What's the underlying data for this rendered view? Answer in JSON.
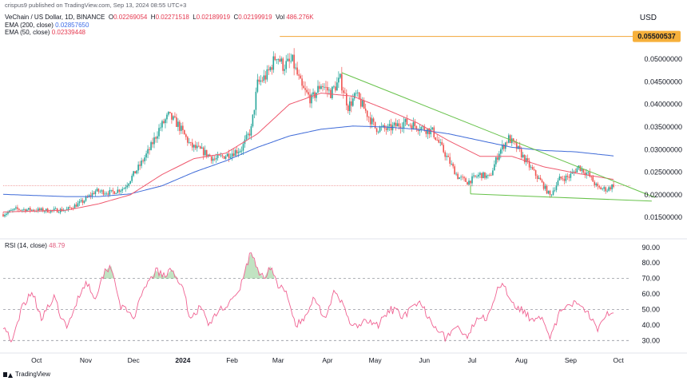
{
  "header": {
    "published": "crispus9 published on TradingView.com, Sep 13, 2024 08:55 UTC+3",
    "symbol": "VeChain / US Dollar, 1D, BINANCE",
    "o_label": "O",
    "o_value": "0.02269054",
    "h_label": "H",
    "h_value": "0.02271518",
    "l_label": "L",
    "l_value": "0.02189919",
    "c_label": "C",
    "c_value": "0.02199919",
    "vol_label": "Vol",
    "vol_value": "486.276K",
    "ema200_label": "EMA (200, close)",
    "ema200_value": "0.02857650",
    "ema50_label": "EMA (50, close)",
    "ema50_value": "0.02339448"
  },
  "currency": "USD",
  "rsi_label": "RSI (14, close)",
  "rsi_value": "48.79",
  "brand": "TradingView",
  "colors": {
    "up": "#26a69a",
    "down": "#ef5350",
    "ema200": "#3f6bd8",
    "ema50": "#ef5a6f",
    "trend": "#67c24a",
    "rsi": "#f06292",
    "hline": "#f3a536",
    "current": "#ef9a9a"
  },
  "chart_data": [
    {
      "type": "candlestick",
      "title": "VeChain / US Dollar, 1D, BINANCE",
      "y_axis_ticks": [
        "0.05000000",
        "0.04500000",
        "0.04000000",
        "0.03500000",
        "0.03000000",
        "0.02500000",
        "0.02000000",
        "0.01500000"
      ],
      "y_tick_values": [
        0.05,
        0.045,
        0.04,
        0.035,
        0.03,
        0.025,
        0.02,
        0.015
      ],
      "ylim": [
        0.0115,
        0.0553
      ],
      "x_axis_ticks": [
        "Oct",
        "Nov",
        "Dec",
        "2024",
        "Feb",
        "Mar",
        "Apr",
        "May",
        "Jun",
        "Jul",
        "Aug",
        "Sep",
        "Oct"
      ],
      "x_tick_days": [
        21,
        52,
        82,
        113,
        144,
        173,
        204,
        234,
        265,
        295,
        326,
        357,
        387
      ],
      "highlight_label": "0.05500537",
      "highlight_value": 0.05500537,
      "price_waypoints": [
        [
          0,
          0.0157
        ],
        [
          8,
          0.0168
        ],
        [
          30,
          0.0165
        ],
        [
          40,
          0.0167
        ],
        [
          50,
          0.0185
        ],
        [
          58,
          0.0208
        ],
        [
          68,
          0.0205
        ],
        [
          76,
          0.0215
        ],
        [
          86,
          0.0265
        ],
        [
          92,
          0.03
        ],
        [
          98,
          0.0345
        ],
        [
          104,
          0.0375
        ],
        [
          110,
          0.0355
        ],
        [
          118,
          0.0308
        ],
        [
          126,
          0.0295
        ],
        [
          133,
          0.0278
        ],
        [
          142,
          0.029
        ],
        [
          150,
          0.0302
        ],
        [
          156,
          0.0345
        ],
        [
          160,
          0.0445
        ],
        [
          166,
          0.0465
        ],
        [
          172,
          0.051
        ],
        [
          176,
          0.0485
        ],
        [
          182,
          0.0495
        ],
        [
          188,
          0.0435
        ],
        [
          194,
          0.041
        ],
        [
          200,
          0.0445
        ],
        [
          206,
          0.0425
        ],
        [
          212,
          0.0455
        ],
        [
          217,
          0.0395
        ],
        [
          222,
          0.042
        ],
        [
          228,
          0.0385
        ],
        [
          234,
          0.0348
        ],
        [
          242,
          0.0345
        ],
        [
          252,
          0.036
        ],
        [
          260,
          0.0352
        ],
        [
          270,
          0.034
        ],
        [
          278,
          0.029
        ],
        [
          286,
          0.024
        ],
        [
          292,
          0.0228
        ],
        [
          300,
          0.0245
        ],
        [
          306,
          0.0238
        ],
        [
          312,
          0.0295
        ],
        [
          318,
          0.0325
        ],
        [
          324,
          0.03
        ],
        [
          332,
          0.0258
        ],
        [
          338,
          0.023
        ],
        [
          344,
          0.0198
        ],
        [
          350,
          0.0235
        ],
        [
          356,
          0.024
        ],
        [
          362,
          0.0262
        ],
        [
          368,
          0.0245
        ],
        [
          374,
          0.0215
        ],
        [
          380,
          0.0212
        ],
        [
          384,
          0.0222
        ]
      ],
      "ema200_waypoints": [
        [
          0,
          0.0201
        ],
        [
          40,
          0.0196
        ],
        [
          60,
          0.0196
        ],
        [
          80,
          0.0202
        ],
        [
          100,
          0.022
        ],
        [
          120,
          0.025
        ],
        [
          140,
          0.0275
        ],
        [
          160,
          0.0305
        ],
        [
          180,
          0.033
        ],
        [
          200,
          0.0345
        ],
        [
          220,
          0.0352
        ],
        [
          240,
          0.035
        ],
        [
          260,
          0.0345
        ],
        [
          280,
          0.0335
        ],
        [
          300,
          0.032
        ],
        [
          320,
          0.0305
        ],
        [
          340,
          0.0298
        ],
        [
          360,
          0.0295
        ],
        [
          384,
          0.0286
        ]
      ],
      "ema50_waypoints": [
        [
          0,
          0.0162
        ],
        [
          40,
          0.0166
        ],
        [
          60,
          0.018
        ],
        [
          80,
          0.02
        ],
        [
          100,
          0.0245
        ],
        [
          120,
          0.028
        ],
        [
          140,
          0.0292
        ],
        [
          160,
          0.0335
        ],
        [
          180,
          0.04
        ],
        [
          200,
          0.0425
        ],
        [
          220,
          0.0418
        ],
        [
          240,
          0.039
        ],
        [
          260,
          0.036
        ],
        [
          280,
          0.032
        ],
        [
          300,
          0.0285
        ],
        [
          320,
          0.0285
        ],
        [
          340,
          0.0262
        ],
        [
          360,
          0.0248
        ],
        [
          384,
          0.0234
        ]
      ],
      "trendline_upper": [
        [
          213,
          0.047
        ],
        [
          410,
          0.0194
        ]
      ],
      "trendline_lower": [
        [
          294,
          0.0202
        ],
        [
          408,
          0.0186
        ]
      ],
      "current_price": 0.022
    },
    {
      "type": "line",
      "title": "RSI (14, close)",
      "y_axis_ticks": [
        "90.00",
        "80.00",
        "70.00",
        "60.00",
        "50.00",
        "40.00",
        "30.00"
      ],
      "y_tick_values": [
        90,
        80,
        70,
        60,
        50,
        40,
        30
      ],
      "ylim": [
        25,
        93
      ],
      "bands": [
        70,
        50,
        30
      ],
      "x_axis_ticks": [
        "Oct",
        "Nov",
        "Dec",
        "2024",
        "Feb",
        "Mar",
        "Apr",
        "May",
        "Jun",
        "Jul",
        "Aug",
        "Sep",
        "Oct"
      ],
      "rsi_waypoints": [
        [
          0,
          40
        ],
        [
          6,
          29
        ],
        [
          12,
          52
        ],
        [
          18,
          62
        ],
        [
          24,
          45
        ],
        [
          32,
          57
        ],
        [
          40,
          37
        ],
        [
          46,
          55
        ],
        [
          52,
          68
        ],
        [
          58,
          58
        ],
        [
          64,
          75
        ],
        [
          68,
          78
        ],
        [
          74,
          52
        ],
        [
          82,
          45
        ],
        [
          90,
          65
        ],
        [
          96,
          75
        ],
        [
          102,
          71
        ],
        [
          106,
          76
        ],
        [
          112,
          66
        ],
        [
          118,
          44
        ],
        [
          124,
          52
        ],
        [
          130,
          40
        ],
        [
          136,
          50
        ],
        [
          142,
          54
        ],
        [
          148,
          60
        ],
        [
          152,
          75
        ],
        [
          156,
          87
        ],
        [
          160,
          76
        ],
        [
          164,
          70
        ],
        [
          168,
          78
        ],
        [
          172,
          67
        ],
        [
          178,
          60
        ],
        [
          184,
          40
        ],
        [
          190,
          44
        ],
        [
          196,
          59
        ],
        [
          202,
          44
        ],
        [
          208,
          60
        ],
        [
          214,
          53
        ],
        [
          220,
          38
        ],
        [
          228,
          42
        ],
        [
          236,
          40
        ],
        [
          244,
          50
        ],
        [
          252,
          46
        ],
        [
          262,
          54
        ],
        [
          270,
          42
        ],
        [
          278,
          32
        ],
        [
          286,
          39
        ],
        [
          292,
          30
        ],
        [
          298,
          46
        ],
        [
          304,
          45
        ],
        [
          310,
          60
        ],
        [
          314,
          68
        ],
        [
          320,
          55
        ],
        [
          326,
          50
        ],
        [
          332,
          44
        ],
        [
          338,
          46
        ],
        [
          344,
          30
        ],
        [
          350,
          48
        ],
        [
          356,
          52
        ],
        [
          362,
          55
        ],
        [
          368,
          48
        ],
        [
          374,
          38
        ],
        [
          378,
          46
        ],
        [
          384,
          49
        ]
      ],
      "current_value": 48.79
    }
  ]
}
